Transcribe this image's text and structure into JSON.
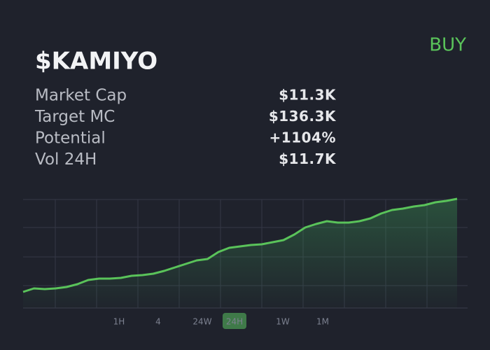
{
  "header": {
    "title": "$KAMIYO",
    "action": "BUY"
  },
  "stats": [
    {
      "label": "Market Cap",
      "value": "$11.3K"
    },
    {
      "label": "Target MC",
      "value": "$136.3K"
    },
    {
      "label": "Potential",
      "value": "+1104%"
    },
    {
      "label": "Vol 24H",
      "value": "$11.7K"
    }
  ],
  "chart_data": {
    "type": "line",
    "color": "#5ac35a",
    "values": [
      23,
      28,
      27,
      28,
      30,
      34,
      40,
      42,
      42,
      43,
      46,
      47,
      49,
      53,
      58,
      63,
      68,
      70,
      80,
      86,
      88,
      90,
      91,
      94,
      97,
      105,
      115,
      120,
      124,
      122,
      122,
      124,
      128,
      135,
      140,
      142,
      145,
      147,
      151,
      153,
      156
    ],
    "ylim": [
      0,
      156
    ]
  },
  "timeframes": {
    "options": [
      "1H",
      "4",
      "24W",
      "24H",
      "1W",
      "1M"
    ],
    "selected": 3
  }
}
